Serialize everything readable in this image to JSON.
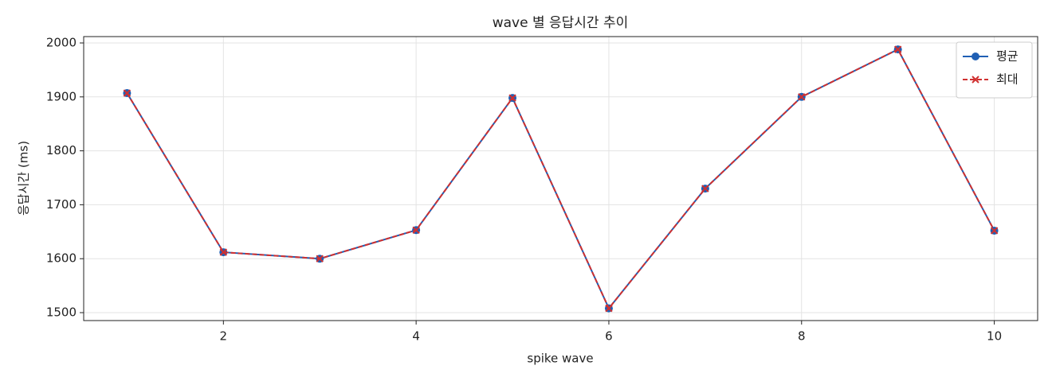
{
  "chart_data": {
    "type": "line",
    "title": "wave 별 응답시간 추이",
    "x_label": "spike wave",
    "y_label": "응답시간 (ms)",
    "x": [
      1,
      2,
      3,
      4,
      5,
      6,
      7,
      8,
      9,
      10
    ],
    "series": [
      {
        "name": "평균",
        "color": "#1f5fb4",
        "marker": "o",
        "dash": false,
        "values": [
          1907,
          1612,
          1600,
          1653,
          1898,
          1508,
          1730,
          1900,
          1988,
          1652
        ]
      },
      {
        "name": "최대",
        "color": "#d03030",
        "marker": "x",
        "dash": true,
        "values": [
          1907,
          1612,
          1600,
          1653,
          1898,
          1508,
          1730,
          1900,
          1988,
          1652
        ]
      }
    ],
    "xlim": [
      0.55,
      10.45
    ],
    "ylim": [
      1485.3,
      2011.8
    ],
    "xticks": [
      2,
      4,
      6,
      8,
      10
    ],
    "yticks": [
      1500,
      1600,
      1700,
      1800,
      1900,
      2000
    ],
    "grid": true,
    "legend": "upper right"
  }
}
